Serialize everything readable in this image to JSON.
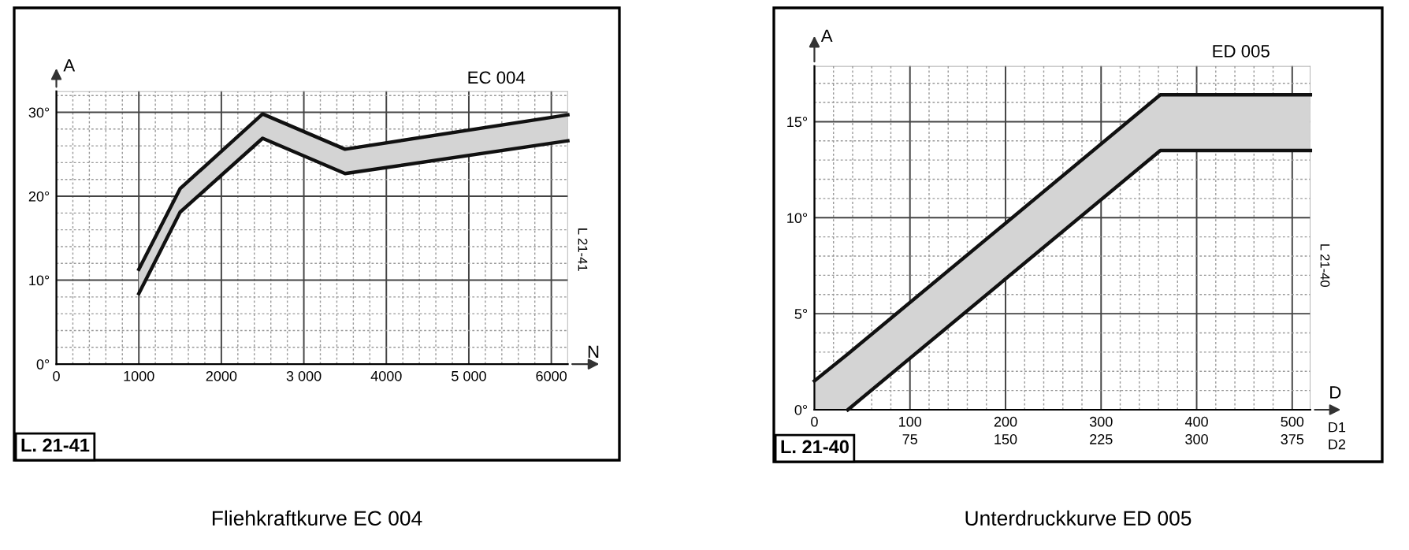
{
  "chart_data": [
    {
      "type": "line",
      "title": "Fliehkraftkurve EC 004",
      "xlabel": "N",
      "ylabel": "A",
      "annotations": [
        "EC 004",
        "L. 21-41",
        "L 21-41"
      ],
      "series": [
        {
          "color": "#111111",
          "x": [
            1000,
            1500,
            2500,
            3500,
            6200
          ],
          "values": [
            11.3,
            20.9,
            29.8,
            25.6,
            29.7
          ],
          "lower": [
            8.4,
            18.1,
            26.9,
            22.7,
            26.6
          ],
          "upper": [
            11.3,
            20.9,
            29.8,
            25.6,
            29.7
          ]
        },
        {
          "color": "#111111",
          "x": [
            1000,
            1500,
            2500,
            3500,
            6200
          ],
          "values": [
            8.4,
            18.1,
            26.9,
            22.7,
            26.6
          ]
        }
      ],
      "xlim": [
        0,
        6200
      ],
      "ylim": [
        0,
        32.5
      ],
      "xticks": [
        0,
        {
          "value": 200,
          "label": null
        },
        {
          "value": 400,
          "label": null
        },
        {
          "value": 600,
          "label": null
        },
        {
          "value": 800,
          "label": null
        },
        1000,
        {
          "value": 1200,
          "label": null
        },
        {
          "value": 1400,
          "label": null
        },
        {
          "value": 1600,
          "label": null
        },
        {
          "value": 1800,
          "label": null
        },
        2000,
        {
          "value": 2200,
          "label": null
        },
        {
          "value": 2400,
          "label": null
        },
        {
          "value": 2600,
          "label": null
        },
        {
          "value": 2800,
          "label": null
        },
        {
          "value": 3000,
          "label": "3 000"
        },
        {
          "value": 3200,
          "label": null
        },
        {
          "value": 3400,
          "label": null
        },
        {
          "value": 3600,
          "label": null
        },
        {
          "value": 3800,
          "label": null
        },
        4000,
        {
          "value": 4200,
          "label": null
        },
        {
          "value": 4400,
          "label": null
        },
        {
          "value": 4600,
          "label": null
        },
        {
          "value": 4800,
          "label": null
        },
        {
          "value": 5000,
          "label": "5 000"
        },
        {
          "value": 5200,
          "label": null
        },
        {
          "value": 5400,
          "label": null
        },
        {
          "value": 5600,
          "label": null
        },
        {
          "value": 5800,
          "label": null
        },
        6000
      ],
      "yticks": [
        {
          "value": 0,
          "label": "0°"
        },
        {
          "value": 2,
          "label": null
        },
        {
          "value": 4,
          "label": null
        },
        {
          "value": 6,
          "label": null
        },
        {
          "value": 8,
          "label": null
        },
        {
          "value": 10,
          "label": "10°"
        },
        {
          "value": 12,
          "label": null
        },
        {
          "value": 14,
          "label": null
        },
        {
          "value": 16,
          "label": null
        },
        {
          "value": 18,
          "label": null
        },
        {
          "value": 20,
          "label": "20°"
        },
        {
          "value": 22,
          "label": null
        },
        {
          "value": 24,
          "label": null
        },
        {
          "value": 26,
          "label": null
        },
        {
          "value": 28,
          "label": null
        },
        {
          "value": 30,
          "label": "30°"
        },
        {
          "value": 32,
          "label": null
        }
      ],
      "grid": true,
      "legend": false,
      "line_style": "solid",
      "marker": "none"
    },
    {
      "type": "line",
      "title": "Unterdruckkurve ED 005",
      "xlabel": "D",
      "ylabel": "A",
      "annotations": [
        "ED 005",
        "L. 21-40",
        "L 21-40",
        "D1",
        "D2"
      ],
      "series": [
        {
          "color": "#111111",
          "x": [
            0,
            35,
            362,
            519
          ],
          "values": [
            1.5,
            2.9,
            16.4,
            16.4
          ],
          "lower": [
            0,
            0,
            13.5,
            13.5
          ],
          "upper": [
            1.5,
            2.9,
            16.4,
            16.4
          ]
        },
        {
          "color": "#111111",
          "x": [
            35,
            362,
            519
          ],
          "values": [
            0,
            13.5,
            13.5
          ]
        }
      ],
      "xlim": [
        0,
        519
      ],
      "ylim": [
        0,
        17.9
      ],
      "x2lim": [
        0,
        389.25
      ],
      "xticks": [
        0,
        {
          "value": 20,
          "label": null
        },
        {
          "value": 40,
          "label": null
        },
        {
          "value": 60,
          "label": null
        },
        {
          "value": 80,
          "label": null
        },
        100,
        {
          "value": 120,
          "label": null
        },
        {
          "value": 140,
          "label": null
        },
        {
          "value": 160,
          "label": null
        },
        {
          "value": 180,
          "label": null
        },
        200,
        {
          "value": 220,
          "label": null
        },
        {
          "value": 240,
          "label": null
        },
        {
          "value": 260,
          "label": null
        },
        {
          "value": 280,
          "label": null
        },
        300,
        {
          "value": 320,
          "label": null
        },
        {
          "value": 340,
          "label": null
        },
        {
          "value": 360,
          "label": null
        },
        {
          "value": 380,
          "label": null
        },
        400,
        {
          "value": 420,
          "label": null
        },
        {
          "value": 440,
          "label": null
        },
        {
          "value": 460,
          "label": null
        },
        {
          "value": 480,
          "label": null
        },
        500
      ],
      "x2ticks": [
        75,
        150,
        225,
        300,
        375
      ],
      "yticks": [
        {
          "value": 0,
          "label": "0°"
        },
        {
          "value": 1,
          "label": null
        },
        {
          "value": 2,
          "label": null
        },
        {
          "value": 3,
          "label": null
        },
        {
          "value": 4,
          "label": null
        },
        {
          "value": 5,
          "label": "5°"
        },
        {
          "value": 6,
          "label": null
        },
        {
          "value": 7,
          "label": null
        },
        {
          "value": 8,
          "label": null
        },
        {
          "value": 9,
          "label": null
        },
        {
          "value": 10,
          "label": "10°"
        },
        {
          "value": 11,
          "label": null
        },
        {
          "value": 12,
          "label": null
        },
        {
          "value": 13,
          "label": null
        },
        {
          "value": 14,
          "label": null
        },
        {
          "value": 15,
          "label": "15°"
        },
        {
          "value": 16,
          "label": null
        },
        {
          "value": 17,
          "label": null
        }
      ],
      "grid": true,
      "legend": false,
      "line_style": "solid",
      "marker": "none"
    }
  ]
}
